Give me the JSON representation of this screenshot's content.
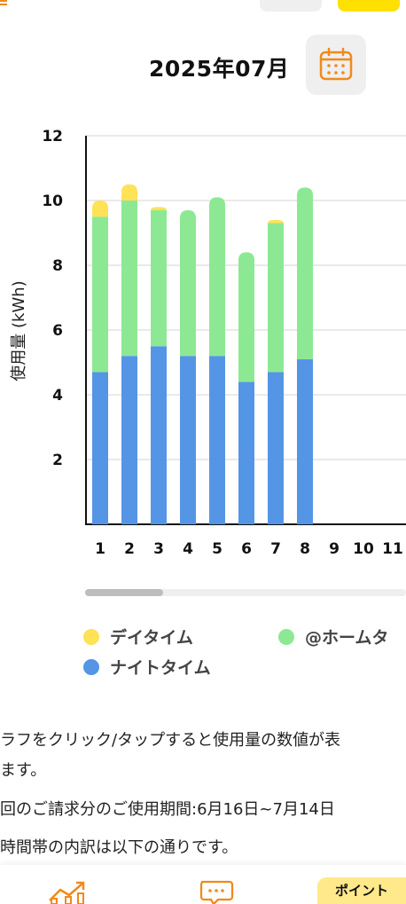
{
  "header": {
    "month_label": "2025年07月",
    "icons": [
      "menu-icon",
      "calendar-icon"
    ]
  },
  "chart_data": {
    "type": "bar",
    "stacked": true,
    "categories": [
      "1",
      "2",
      "3",
      "4",
      "5",
      "6",
      "7",
      "8",
      "9",
      "10",
      "11"
    ],
    "series": [
      {
        "name": "ナイトタイム",
        "color": "#5595e6",
        "values": [
          4.7,
          5.2,
          5.5,
          5.2,
          5.2,
          4.4,
          4.7,
          5.1,
          null,
          null,
          null
        ]
      },
      {
        "name": "@ホームタ",
        "color": "#8de894",
        "values": [
          4.8,
          4.8,
          4.2,
          4.5,
          4.9,
          4.0,
          4.6,
          5.3,
          null,
          null,
          null
        ]
      },
      {
        "name": "デイタイム",
        "color": "#ffe256",
        "values": [
          0.5,
          0.5,
          0.1,
          0.0,
          0.0,
          0.0,
          0.1,
          0.0,
          null,
          null,
          null
        ]
      }
    ],
    "ylabel": "使用量 (kWh)",
    "yticks": [
      "2",
      "4",
      "6",
      "8",
      "10",
      "12"
    ],
    "ylim": [
      0,
      12
    ],
    "grid": true
  },
  "legend": {
    "day": {
      "label": "デイタイム",
      "color": "#ffe256"
    },
    "home": {
      "label": "@ホームタ",
      "color": "#8de894"
    },
    "night": {
      "label": "ナイトタイム",
      "color": "#5595e6"
    }
  },
  "notes": {
    "line1a": "ラフをクリック/タップすると使用量の数値が表",
    "line1b": "ます。",
    "line2": "回のご請求分のご使用期間:6月16日~7月14日",
    "line3": "時間帯の内訳は以下の通りです。"
  },
  "bottom_nav": {
    "point_label": "ポイント",
    "icons": [
      "graph-icon",
      "chat-icon"
    ]
  }
}
